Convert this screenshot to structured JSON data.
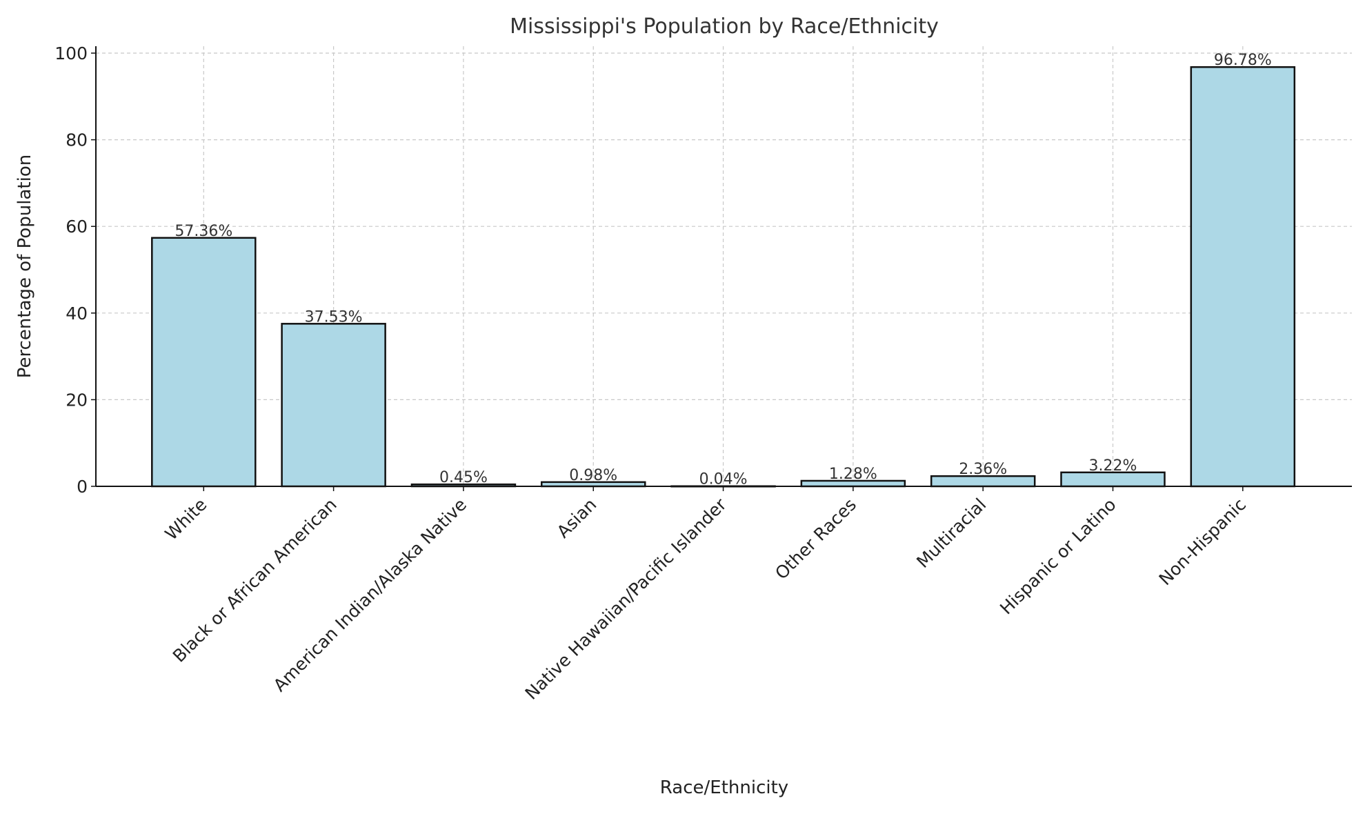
{
  "chart_data": {
    "type": "bar",
    "title": "Mississippi's Population by Race/Ethnicity",
    "xlabel": "Race/Ethnicity",
    "ylabel": "Percentage of Population",
    "categories": [
      "White",
      "Black or African American",
      "American Indian/Alaska Native",
      "Asian",
      "Native Hawaiian/Pacific Islander",
      "Other Races",
      "Multiracial",
      "Hispanic or Latino",
      "Non-Hispanic"
    ],
    "values": [
      57.36,
      37.53,
      0.45,
      0.98,
      0.04,
      1.28,
      2.36,
      3.22,
      96.78
    ],
    "data_labels": [
      "57.36%",
      "37.53%",
      "0.45%",
      "0.98%",
      "0.04%",
      "1.28%",
      "2.36%",
      "3.22%",
      "96.78%"
    ],
    "ylim": [
      0,
      101.6
    ],
    "yticks": [
      0,
      20,
      40,
      60,
      80,
      100
    ],
    "grid": true,
    "bar_color": "#add8e6",
    "edge_color": "#111111"
  }
}
